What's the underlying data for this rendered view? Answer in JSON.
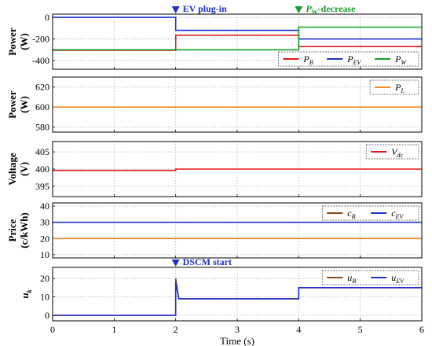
{
  "chart_data": [
    {
      "type": "line",
      "ylabel_lines": [
        "Power",
        "(W)"
      ],
      "ylim": [
        -480,
        30
      ],
      "yticks": [
        0,
        -200,
        -400
      ],
      "legend": {
        "placement": "bottom-right",
        "entries": [
          {
            "main": "P",
            "sub": "B",
            "color": "#e31a1c"
          },
          {
            "main": "P",
            "sub": "EV",
            "color": "#1f2fcc"
          },
          {
            "main": "P",
            "sub": "W",
            "color": "#179e27"
          }
        ]
      },
      "series": [
        {
          "color": "#e31a1c",
          "x": [
            0,
            2,
            2,
            4,
            4,
            6
          ],
          "y": [
            -305,
            -305,
            -165,
            -165,
            -270,
            -270
          ]
        },
        {
          "color": "#1f2fcc",
          "x": [
            0,
            2,
            2,
            4,
            4,
            6
          ],
          "y": [
            0,
            0,
            -120,
            -120,
            -200,
            -200
          ]
        },
        {
          "color": "#179e27",
          "x": [
            0,
            2,
            2,
            4,
            4,
            6
          ],
          "y": [
            -300,
            -300,
            -300,
            -300,
            -90,
            -90
          ]
        }
      ],
      "annotations": [
        {
          "text": "EV plug-in",
          "x": 2,
          "color": "#1f2fcc"
        },
        {
          "text": "decrease",
          "x": 4,
          "color": "#179e27",
          "prefix_main": "P",
          "prefix_sub": "W",
          "joiner": "-"
        }
      ]
    },
    {
      "type": "line",
      "ylabel_lines": [
        "Power",
        "(W)"
      ],
      "ylim": [
        575,
        630
      ],
      "yticks": [
        620,
        600,
        580
      ],
      "legend": {
        "placement": "top-right",
        "entries": [
          {
            "main": "P",
            "sub": "L",
            "color": "#f08a24"
          }
        ]
      },
      "series": [
        {
          "color": "#f08a24",
          "x": [
            0,
            6
          ],
          "y": [
            600,
            600
          ]
        }
      ]
    },
    {
      "type": "line",
      "ylabel_lines": [
        "Voltage",
        "(V)"
      ],
      "ylim": [
        392,
        408
      ],
      "yticks": [
        405,
        400,
        395
      ],
      "legend": {
        "placement": "top-right",
        "entries": [
          {
            "main": "V",
            "sub": "dc",
            "color": "#e31a1c"
          }
        ]
      },
      "series": [
        {
          "color": "#e31a1c",
          "x": [
            0,
            2,
            2,
            6
          ],
          "y": [
            399.6,
            399.6,
            400,
            400
          ]
        }
      ]
    },
    {
      "type": "line",
      "ylabel_lines": [
        "Price",
        "(c/kWh)"
      ],
      "ylim": [
        8,
        42
      ],
      "yticks": [
        40,
        30,
        20,
        10
      ],
      "legend": {
        "placement": "top-right",
        "entries": [
          {
            "main": "c",
            "sub": "B",
            "color": "#8a4a1a"
          },
          {
            "main": "c",
            "sub": "EV",
            "color": "#1f2fcc"
          }
        ]
      },
      "series": [
        {
          "color": "#f08a24",
          "x": [
            0,
            6
          ],
          "y": [
            20,
            20
          ]
        },
        {
          "color": "#1f2fcc",
          "x": [
            0,
            6
          ],
          "y": [
            30,
            30
          ]
        }
      ]
    },
    {
      "type": "line",
      "ylabel_lines": [
        "u",
        "k"
      ],
      "ylim": [
        -3,
        26
      ],
      "yticks": [
        20,
        10,
        0
      ],
      "legend": {
        "placement": "top-right",
        "entries": [
          {
            "main": "u",
            "sub": "B",
            "color": "#8a4a1a"
          },
          {
            "main": "u",
            "sub": "EV",
            "color": "#1f2fcc"
          }
        ]
      },
      "series": [
        {
          "color": "#8a4a1a",
          "x": [
            0,
            2,
            2,
            2.05,
            4,
            4,
            6
          ],
          "y": [
            0,
            0,
            20,
            9,
            9,
            15,
            15
          ]
        },
        {
          "color": "#1f2fcc",
          "x": [
            0,
            2,
            2,
            2.05,
            4,
            4,
            6
          ],
          "y": [
            0,
            0,
            18,
            9,
            9,
            15,
            15
          ]
        }
      ],
      "annotations": [
        {
          "text": "DSCM start",
          "x": 2,
          "color": "#1f2fcc"
        }
      ]
    }
  ],
  "xaxis": {
    "label": "Time (s)",
    "xlim": [
      0,
      6
    ],
    "ticks": [
      0,
      1,
      2,
      3,
      4,
      5,
      6
    ]
  }
}
